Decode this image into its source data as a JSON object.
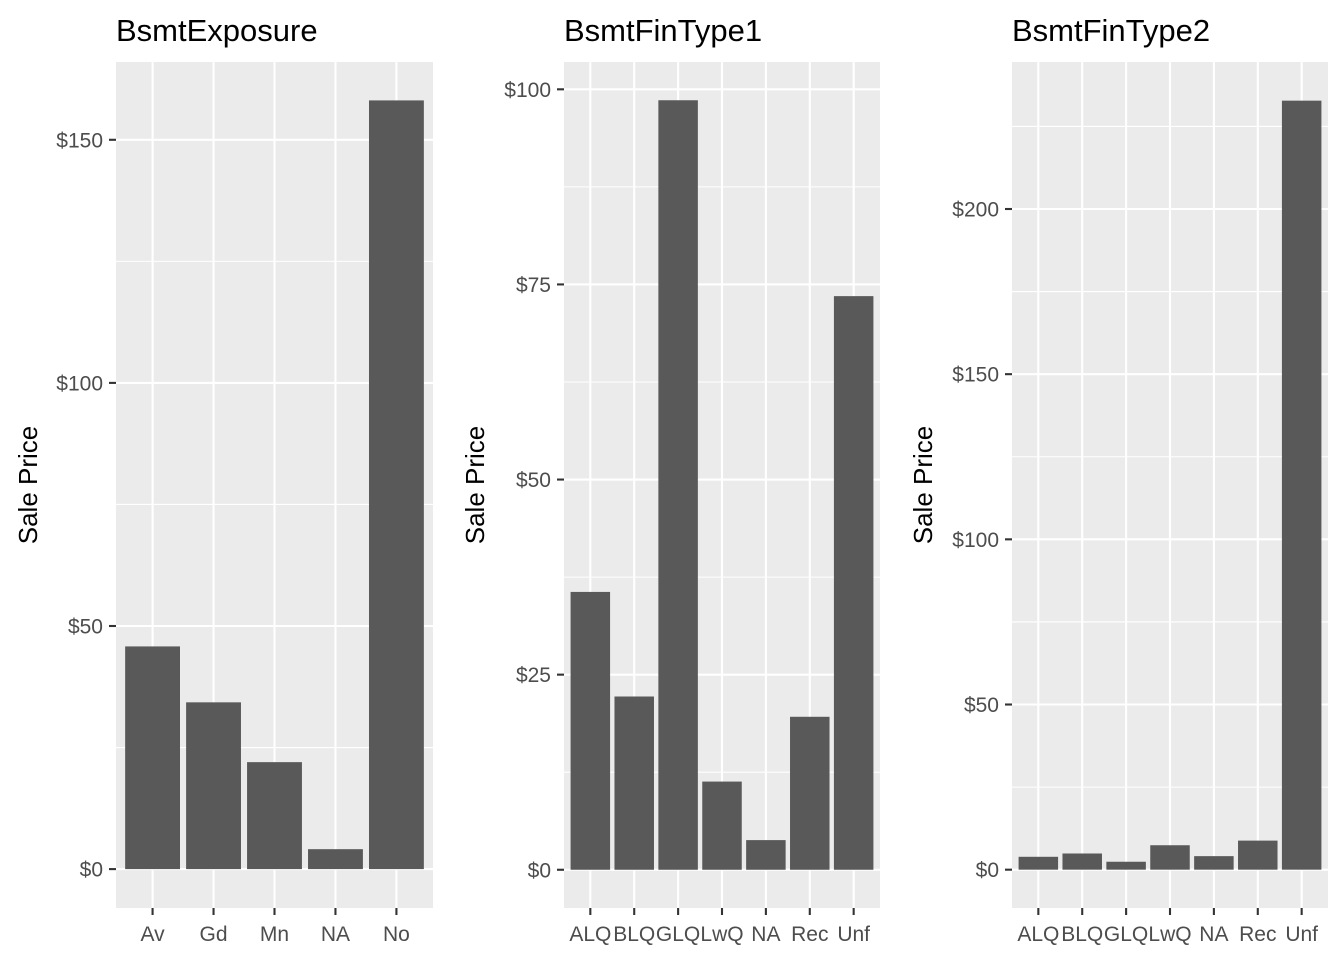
{
  "chart_data": [
    {
      "type": "bar",
      "title": "BsmtExposure",
      "ylabel": "Sale Price",
      "xlabel": "",
      "categories": [
        "Av",
        "Gd",
        "Mn",
        "NA",
        "No"
      ],
      "values": [
        45.8,
        34.3,
        22.0,
        4.1,
        158.1
      ],
      "ylim": [
        -8,
        166
      ],
      "yticks": [
        0,
        50,
        100,
        150
      ],
      "ytick_labels": [
        "$0",
        "$50",
        "$100",
        "$150"
      ],
      "grid": true,
      "bar_color": "#595959",
      "panel_color": "#ebebeb"
    },
    {
      "type": "bar",
      "title": "BsmtFinType1",
      "ylabel": "Sale Price",
      "xlabel": "",
      "categories": [
        "ALQ",
        "BLQ",
        "GLQ",
        "LwQ",
        "NA",
        "Rec",
        "Unf"
      ],
      "values": [
        35.6,
        22.2,
        98.6,
        11.3,
        3.8,
        19.6,
        73.5
      ],
      "ylim": [
        -4.9,
        103.5
      ],
      "yticks": [
        0,
        25,
        50,
        75,
        100
      ],
      "ytick_labels": [
        "$0",
        "$25",
        "$50",
        "$75",
        "$100"
      ],
      "grid": true,
      "bar_color": "#595959",
      "panel_color": "#ebebeb"
    },
    {
      "type": "bar",
      "title": "BsmtFinType2",
      "ylabel": "Sale Price",
      "xlabel": "",
      "categories": [
        "ALQ",
        "BLQ",
        "GLQ",
        "LwQ",
        "NA",
        "Rec",
        "Unf"
      ],
      "values": [
        3.9,
        4.9,
        2.4,
        7.4,
        4.1,
        8.8,
        232.8
      ],
      "ylim": [
        -11.6,
        244.5
      ],
      "yticks": [
        0,
        50,
        100,
        150,
        200
      ],
      "ytick_labels": [
        "$0",
        "$50",
        "$100",
        "$150",
        "$200"
      ],
      "grid": true,
      "bar_color": "#595959",
      "panel_color": "#ebebeb"
    }
  ]
}
